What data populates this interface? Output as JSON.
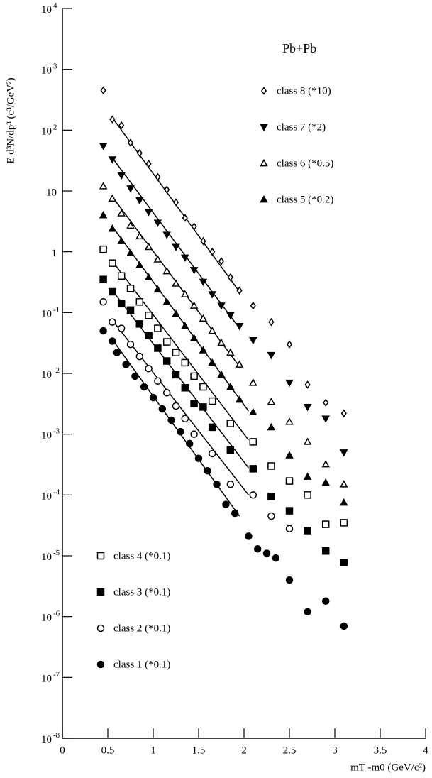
{
  "chart_data": {
    "type": "scatter",
    "y_log": true,
    "y_label": "E d³N/dp³  (c³/GeV²)",
    "x_label": "mT -m0  (GeV/c²)",
    "annotation": "Pb+Pb",
    "xlim": [
      0,
      4
    ],
    "xticks": [
      0,
      0.5,
      1,
      1.5,
      2,
      2.5,
      3,
      3.5,
      4
    ],
    "ylim": [
      1e-08,
      10000
    ],
    "yticks": [
      {
        "value": 1e-08,
        "label": "10",
        "exponent": "-8"
      },
      {
        "value": 1e-07,
        "label": "10",
        "exponent": "-7"
      },
      {
        "value": 1e-06,
        "label": "10",
        "exponent": "-6"
      },
      {
        "value": 1e-05,
        "label": "10",
        "exponent": "-5"
      },
      {
        "value": 0.0001,
        "label": "10",
        "exponent": "-4"
      },
      {
        "value": 0.001,
        "label": "10",
        "exponent": "-3"
      },
      {
        "value": 0.01,
        "label": "10",
        "exponent": "-2"
      },
      {
        "value": 0.1,
        "label": "10",
        "exponent": "-1"
      },
      1,
      10,
      {
        "value": 100,
        "label": "10",
        "exponent": "2"
      },
      {
        "value": 1000,
        "label": "10",
        "exponent": "3"
      },
      {
        "value": 10000,
        "label": "10",
        "exponent": "4"
      }
    ],
    "series": [
      {
        "name": "class 8 (*10)",
        "marker": "diamond-open",
        "color": "#000000",
        "x": [
          0.45,
          0.55,
          0.65,
          0.75,
          0.85,
          0.95,
          1.05,
          1.15,
          1.25,
          1.35,
          1.45,
          1.55,
          1.65,
          1.75,
          1.85,
          1.95,
          2.1,
          2.3,
          2.5,
          2.7,
          2.9,
          3.1
        ],
        "values": [
          450,
          150,
          120,
          62,
          42,
          28,
          17,
          10.5,
          6.5,
          3.6,
          2.6,
          1.5,
          1.0,
          0.7,
          0.38,
          0.23,
          0.13,
          0.07,
          0.03,
          0.0065,
          0.0033,
          0.0022
        ],
        "fit": {
          "x": [
            0.55,
            1.95
          ],
          "values": [
            160,
            0.22
          ]
        }
      },
      {
        "name": "class 7 (*2)",
        "marker": "triangle-down",
        "color": "#000000",
        "x": [
          0.45,
          0.55,
          0.65,
          0.75,
          0.85,
          0.95,
          1.05,
          1.15,
          1.25,
          1.35,
          1.45,
          1.55,
          1.65,
          1.75,
          1.85,
          1.95,
          2.1,
          2.3,
          2.5,
          2.7,
          2.9,
          3.1
        ],
        "values": [
          55,
          33,
          18,
          11,
          7,
          4.5,
          3,
          1.9,
          1.2,
          0.8,
          0.5,
          0.32,
          0.2,
          0.13,
          0.09,
          0.06,
          0.035,
          0.02,
          0.007,
          0.0028,
          0.0018,
          0.0005
        ],
        "fit": {
          "x": [
            0.55,
            1.95
          ],
          "values": [
            35,
            0.055
          ]
        }
      },
      {
        "name": "class 6 (*0.5)",
        "marker": "triangle-open",
        "color": "#000000",
        "x": [
          0.45,
          0.55,
          0.65,
          0.75,
          0.85,
          0.95,
          1.05,
          1.15,
          1.25,
          1.35,
          1.45,
          1.55,
          1.65,
          1.75,
          1.85,
          1.95,
          2.1,
          2.3,
          2.5,
          2.7,
          2.9,
          3.1
        ],
        "values": [
          12,
          7.5,
          4.3,
          2.7,
          1.8,
          1.2,
          0.75,
          0.48,
          0.3,
          0.2,
          0.13,
          0.08,
          0.05,
          0.032,
          0.022,
          0.014,
          0.007,
          0.0034,
          0.0016,
          0.00075,
          0.00032,
          0.00015
        ],
        "fit": {
          "x": [
            0.55,
            1.95
          ],
          "values": [
            8,
            0.013
          ]
        }
      },
      {
        "name": "class 5 (*0.2)",
        "marker": "triangle",
        "color": "#000000",
        "x": [
          0.45,
          0.55,
          0.65,
          0.75,
          0.85,
          0.95,
          1.05,
          1.15,
          1.25,
          1.35,
          1.45,
          1.55,
          1.65,
          1.75,
          1.85,
          1.95,
          2.1,
          2.3,
          2.5,
          2.7,
          2.9,
          3.1
        ],
        "values": [
          4,
          2.4,
          1.5,
          0.95,
          0.6,
          0.38,
          0.24,
          0.15,
          0.095,
          0.06,
          0.038,
          0.024,
          0.015,
          0.0095,
          0.006,
          0.0037,
          0.0023,
          0.0013,
          0.00045,
          0.0002,
          0.00016,
          7.5e-05
        ],
        "fit": {
          "x": [
            0.55,
            2.05
          ],
          "values": [
            2.6,
            0.0024
          ]
        }
      },
      {
        "name": "class 4 (*0.1)",
        "marker": "square-open",
        "color": "#000000",
        "x": [
          0.45,
          0.55,
          0.65,
          0.75,
          0.85,
          0.95,
          1.05,
          1.15,
          1.25,
          1.35,
          1.45,
          1.55,
          1.65,
          1.85,
          2.1,
          2.3,
          2.5,
          2.7,
          2.9,
          3.1
        ],
        "values": [
          1.1,
          0.65,
          0.4,
          0.25,
          0.15,
          0.09,
          0.055,
          0.033,
          0.022,
          0.015,
          0.009,
          0.006,
          0.0035,
          0.0015,
          0.00075,
          0.0003,
          0.00017,
          0.0001,
          3.3e-05,
          3.5e-05
        ],
        "fit": {
          "x": [
            0.55,
            2.05
          ],
          "values": [
            0.7,
            0.0008
          ]
        }
      },
      {
        "name": "class 3 (*0.1)",
        "marker": "square",
        "color": "#000000",
        "x": [
          0.45,
          0.55,
          0.65,
          0.75,
          0.85,
          0.95,
          1.05,
          1.15,
          1.25,
          1.35,
          1.45,
          1.55,
          1.65,
          1.85,
          2.1,
          2.3,
          2.5,
          2.7,
          2.9,
          3.1
        ],
        "values": [
          0.35,
          0.22,
          0.14,
          0.11,
          0.065,
          0.042,
          0.026,
          0.016,
          0.0095,
          0.0058,
          0.0032,
          0.0028,
          0.0013,
          0.00055,
          0.00027,
          9.5e-05,
          5.5e-05,
          2.6e-05,
          1.2e-05,
          7.8e-06
        ],
        "fit": {
          "x": [
            0.55,
            2.05
          ],
          "values": [
            0.23,
            0.00028
          ]
        }
      },
      {
        "name": "class 2 (*0.1)",
        "marker": "circle-open",
        "color": "#000000",
        "x": [
          0.45,
          0.55,
          0.65,
          0.75,
          0.85,
          0.95,
          1.05,
          1.15,
          1.25,
          1.35,
          1.45,
          1.65,
          1.85,
          2.1,
          2.3,
          2.5
        ],
        "values": [
          0.15,
          0.07,
          0.055,
          0.03,
          0.019,
          0.012,
          0.0075,
          0.0048,
          0.0029,
          0.0018,
          0.001,
          0.00048,
          0.00015,
          0.0001,
          4.5e-05,
          2.8e-05
        ],
        "fit": {
          "x": [
            0.55,
            2.05
          ],
          "values": [
            0.075,
            0.0001
          ]
        }
      },
      {
        "name": "class 1 (*0.1)",
        "marker": "circle",
        "color": "#000000",
        "x": [
          0.45,
          0.55,
          0.6,
          0.7,
          0.8,
          0.9,
          1.0,
          1.1,
          1.2,
          1.3,
          1.4,
          1.5,
          1.6,
          1.7,
          1.8,
          1.9,
          2.05,
          2.15,
          2.25,
          2.35,
          2.5,
          2.7,
          2.9,
          3.1
        ],
        "values": [
          0.05,
          0.034,
          0.022,
          0.014,
          0.009,
          0.006,
          0.004,
          0.0026,
          0.0017,
          0.0011,
          0.0007,
          0.0004,
          0.00025,
          0.00015,
          7e-05,
          5e-05,
          2.1e-05,
          1.3e-05,
          1.1e-05,
          9.2e-06,
          4e-06,
          1.2e-06,
          1.8e-06,
          7e-07
        ],
        "fit": {
          "x": [
            0.55,
            1.95
          ],
          "values": [
            0.036,
            4.5e-05
          ]
        }
      }
    ]
  }
}
